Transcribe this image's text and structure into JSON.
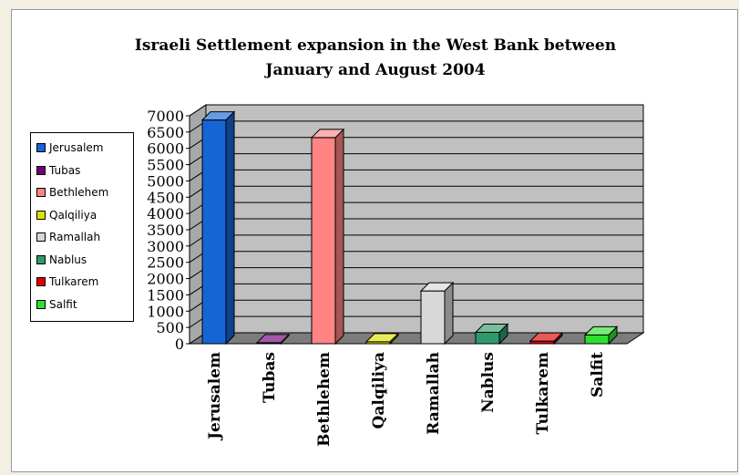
{
  "chart_data": {
    "type": "bar",
    "title": "Israeli Settlement expansion in the West Bank between January and August 2004",
    "title_lines": [
      "Israeli Settlement expansion in the West Bank between",
      "January and August 2004"
    ],
    "categories": [
      "Jerusalem",
      "Tubas",
      "Bethlehem",
      "Qalqiliya",
      "Ramallah",
      "Nablus",
      "Tulkarem",
      "Salfit"
    ],
    "values": [
      6870,
      30,
      6330,
      60,
      1620,
      350,
      80,
      270
    ],
    "colors": [
      "#1565d6",
      "#70007a",
      "#ff8585",
      "#e0e000",
      "#d8d8d8",
      "#2e9a6a",
      "#e00000",
      "#2ee02e"
    ],
    "ylim": [
      0,
      7000
    ],
    "yticks": [
      "0",
      "500",
      "1000",
      "1500",
      "2000",
      "2500",
      "3000",
      "3500",
      "4000",
      "4500",
      "5000",
      "5500",
      "6000",
      "6500",
      "7000"
    ],
    "xlabel": "",
    "ylabel": "",
    "grid": true,
    "legend_position": "left",
    "wall_color": "#c0c0c0"
  }
}
